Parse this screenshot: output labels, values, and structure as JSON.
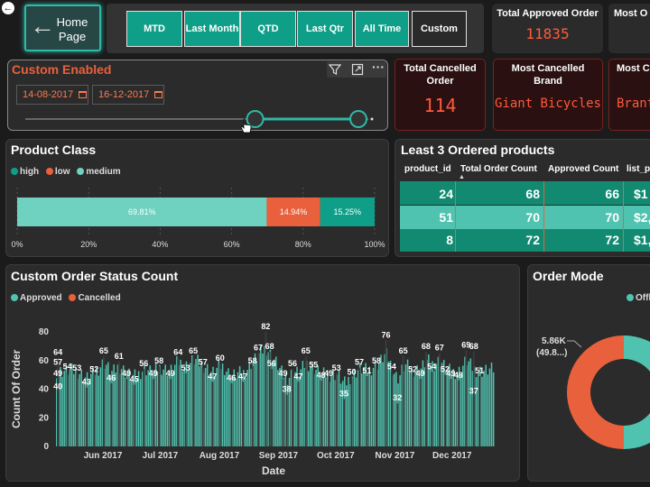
{
  "nav": {
    "back_icon": "arrow-left-circle-icon",
    "home_label": "Home Page",
    "home_icon": "arrow-left-icon"
  },
  "periods": [
    "MTD",
    "Last Month",
    "QTD",
    "Last Qtr",
    "All Time",
    "Custom"
  ],
  "selected_period": "Custom",
  "kpis": [
    {
      "label": "Total Approved Order",
      "value": "11835"
    },
    {
      "label": "Most O",
      "value": ""
    },
    {
      "label": "Total Cancelled Order",
      "value": "114"
    },
    {
      "label": "Most Cancelled Brand",
      "value": "Giant Bicycles"
    },
    {
      "label": "Most C",
      "value": "Brant"
    }
  ],
  "custom_filter": {
    "title": "Custom Enabled",
    "start_date": "14-08-2017",
    "end_date": "16-12-2017",
    "slider_start": 0.67,
    "slider_end": 1.0
  },
  "product_class": {
    "title": "Product Class",
    "legend": [
      {
        "name": "high",
        "color": "#0f9e87"
      },
      {
        "name": "low",
        "color": "#e8613c"
      },
      {
        "name": "medium",
        "color": "#6fd1bf"
      }
    ],
    "segments": [
      {
        "name": "medium",
        "value": 69.81,
        "label": "69.81%",
        "color": "#6fd1bf"
      },
      {
        "name": "low",
        "value": 14.94,
        "label": "14.94%",
        "color": "#e8613c"
      },
      {
        "name": "high",
        "value": 15.25,
        "label": "15.25%",
        "color": "#0f9e87"
      }
    ],
    "ticks": [
      "0%",
      "20%",
      "40%",
      "60%",
      "80%",
      "100%"
    ]
  },
  "least_products": {
    "title": "Least 3 Ordered products",
    "columns": [
      "product_id",
      "Total Order Count",
      "Approved Count",
      "list_p"
    ],
    "rows": [
      [
        "24",
        "68",
        "66",
        "$1"
      ],
      [
        "51",
        "70",
        "70",
        "$2,0"
      ],
      [
        "8",
        "72",
        "72",
        "$1,7"
      ]
    ]
  },
  "order_status": {
    "title": "Custom Order Status Count",
    "legend": [
      {
        "name": "Approved",
        "color": "#4fc3b0"
      },
      {
        "name": "Cancelled",
        "color": "#e8613c"
      }
    ],
    "ylabel": "Count Of Order",
    "xlabel": "Date",
    "y_ticks": [
      "0",
      "20",
      "40",
      "60",
      "80"
    ],
    "x_ticks": [
      "Jun 2017",
      "Jul 2017",
      "Aug 2017",
      "Sep 2017",
      "Oct 2017",
      "Nov 2017",
      "Dec 2017"
    ]
  },
  "order_mode": {
    "title": "Order Mode",
    "legend_partial": "Offl",
    "label_value": "5.86K",
    "label_pct": "(49.8...)"
  },
  "chart_data": {
    "type": "bar",
    "title": "Custom Order Status Count",
    "xlabel": "Date",
    "ylabel": "Count Of Order",
    "ylim": [
      0,
      80
    ],
    "x_range": [
      "2017-05-14",
      "2017-12-30"
    ],
    "series": [
      {
        "name": "Approved",
        "color": "#4fc3b0"
      },
      {
        "name": "Cancelled",
        "color": "#e8613c"
      }
    ],
    "labeled_points": [
      {
        "date": "2017-05-15",
        "value": 64
      },
      {
        "date": "2017-05-15",
        "value": 57
      },
      {
        "date": "2017-05-15",
        "value": 49
      },
      {
        "date": "2017-05-15",
        "value": 40
      },
      {
        "date": "2017-05-20",
        "value": 54
      },
      {
        "date": "2017-05-25",
        "value": 53
      },
      {
        "date": "2017-05-30",
        "value": 43
      },
      {
        "date": "2017-06-03",
        "value": 52
      },
      {
        "date": "2017-06-08",
        "value": 65
      },
      {
        "date": "2017-06-12",
        "value": 46
      },
      {
        "date": "2017-06-16",
        "value": 61
      },
      {
        "date": "2017-06-20",
        "value": 49
      },
      {
        "date": "2017-06-24",
        "value": 45
      },
      {
        "date": "2017-06-29",
        "value": 56
      },
      {
        "date": "2017-07-04",
        "value": 49
      },
      {
        "date": "2017-07-07",
        "value": 58
      },
      {
        "date": "2017-07-13",
        "value": 49
      },
      {
        "date": "2017-07-17",
        "value": 64
      },
      {
        "date": "2017-07-21",
        "value": 53
      },
      {
        "date": "2017-07-25",
        "value": 65
      },
      {
        "date": "2017-07-30",
        "value": 57
      },
      {
        "date": "2017-08-04",
        "value": 47
      },
      {
        "date": "2017-08-08",
        "value": 60
      },
      {
        "date": "2017-08-14",
        "value": 46
      },
      {
        "date": "2017-08-20",
        "value": 47
      },
      {
        "date": "2017-08-25",
        "value": 58
      },
      {
        "date": "2017-08-28",
        "value": 67
      },
      {
        "date": "2017-09-01",
        "value": 82
      },
      {
        "date": "2017-09-03",
        "value": 68
      },
      {
        "date": "2017-09-04",
        "value": 56
      },
      {
        "date": "2017-09-10",
        "value": 49
      },
      {
        "date": "2017-09-12",
        "value": 38
      },
      {
        "date": "2017-09-15",
        "value": 56
      },
      {
        "date": "2017-09-18",
        "value": 47
      },
      {
        "date": "2017-09-22",
        "value": 65
      },
      {
        "date": "2017-09-26",
        "value": 55
      },
      {
        "date": "2017-09-30",
        "value": 48
      },
      {
        "date": "2017-10-04",
        "value": 49
      },
      {
        "date": "2017-10-08",
        "value": 53
      },
      {
        "date": "2017-10-12",
        "value": 35
      },
      {
        "date": "2017-10-16",
        "value": 50
      },
      {
        "date": "2017-10-20",
        "value": 57
      },
      {
        "date": "2017-10-24",
        "value": 51
      },
      {
        "date": "2017-10-29",
        "value": 58
      },
      {
        "date": "2017-11-03",
        "value": 76
      },
      {
        "date": "2017-11-06",
        "value": 54
      },
      {
        "date": "2017-11-09",
        "value": 32
      },
      {
        "date": "2017-11-12",
        "value": 65
      },
      {
        "date": "2017-11-17",
        "value": 52
      },
      {
        "date": "2017-11-21",
        "value": 49
      },
      {
        "date": "2017-11-24",
        "value": 68
      },
      {
        "date": "2017-11-27",
        "value": 54
      },
      {
        "date": "2017-12-01",
        "value": 67
      },
      {
        "date": "2017-12-04",
        "value": 52
      },
      {
        "date": "2017-12-07",
        "value": 49
      },
      {
        "date": "2017-12-11",
        "value": 48
      },
      {
        "date": "2017-12-15",
        "value": 69
      },
      {
        "date": "2017-12-19",
        "value": 68
      },
      {
        "date": "2017-12-19",
        "value": 37
      },
      {
        "date": "2017-12-22",
        "value": 51
      }
    ]
  }
}
